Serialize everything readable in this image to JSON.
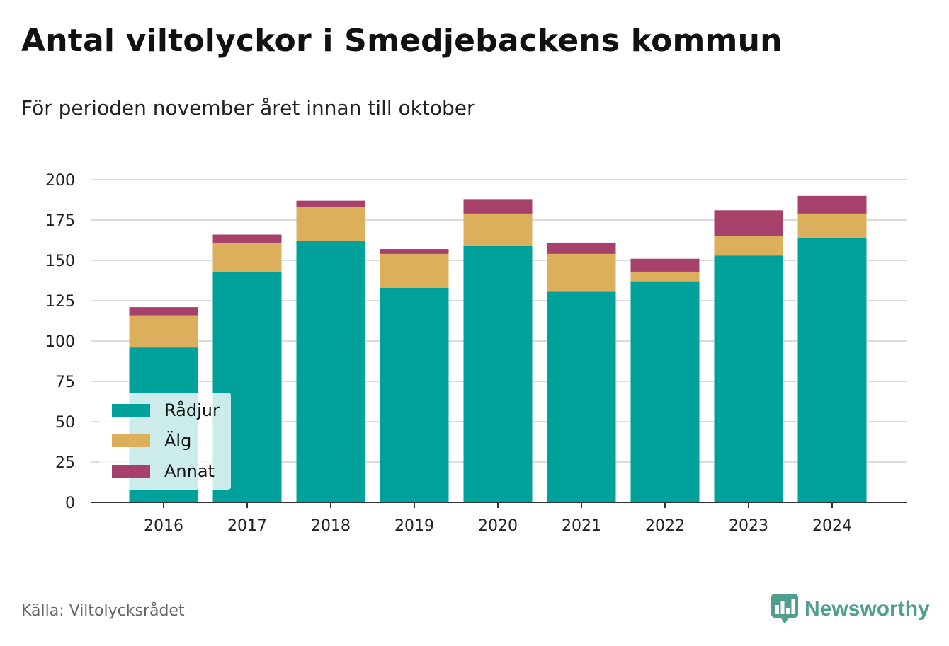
{
  "header": {
    "title": "Antal viltolyckor i Smedjebackens kommun",
    "subtitle": "För perioden november året innan till oktober"
  },
  "footer": {
    "source": "Källa: Viltolycksrådet",
    "brand": "Newsworthy",
    "brand_icon": "bar-chart-speech-bubble-icon"
  },
  "colors": {
    "Rådjur": "#00a19a",
    "Älg": "#dcaf5c",
    "Annat": "#a6416b",
    "grid": "#dcdcdc",
    "axis": "#333333",
    "brand": "#4f9e90"
  },
  "chart_data": {
    "type": "bar",
    "stacked": true,
    "categories": [
      "2016",
      "2017",
      "2018",
      "2019",
      "2020",
      "2021",
      "2022",
      "2023",
      "2024"
    ],
    "series": [
      {
        "name": "Rådjur",
        "values": [
          96,
          143,
          162,
          133,
          159,
          131,
          137,
          153,
          164
        ]
      },
      {
        "name": "Älg",
        "values": [
          20,
          18,
          21,
          21,
          20,
          23,
          6,
          12,
          15
        ]
      },
      {
        "name": "Annat",
        "values": [
          5,
          5,
          4,
          3,
          9,
          7,
          8,
          16,
          11
        ]
      }
    ],
    "title": "Antal viltolyckor i Smedjebackens kommun",
    "subtitle": "För perioden november året innan till oktober",
    "xlabel": "",
    "ylabel": "",
    "ylim": [
      0,
      200
    ],
    "yticks": [
      0,
      25,
      50,
      75,
      100,
      125,
      150,
      175,
      200
    ],
    "grid": true,
    "legend": "bottom-left"
  }
}
